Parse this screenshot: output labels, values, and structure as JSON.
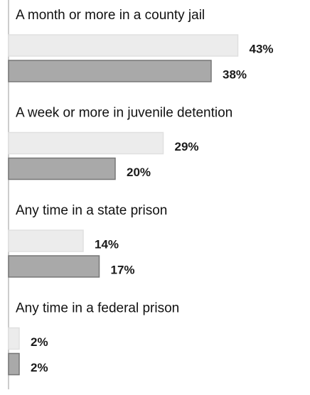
{
  "chart_data": {
    "type": "bar",
    "orientation": "horizontal",
    "categories": [
      "A month or more in a county jail",
      "A week or more in juvenile detention",
      "Any time in a state prison",
      "Any time in a federal prison"
    ],
    "xlim": [
      0,
      56
    ],
    "series": [
      {
        "color": "#ececec",
        "values": [
          43,
          29,
          14,
          2
        ],
        "value_labels": [
          "43%",
          "29%",
          "14%",
          "2%"
        ]
      },
      {
        "color": "#a9a9a9",
        "values": [
          38,
          20,
          17,
          2
        ],
        "value_labels": [
          "38%",
          "20%",
          "17%",
          "2%"
        ]
      }
    ]
  }
}
